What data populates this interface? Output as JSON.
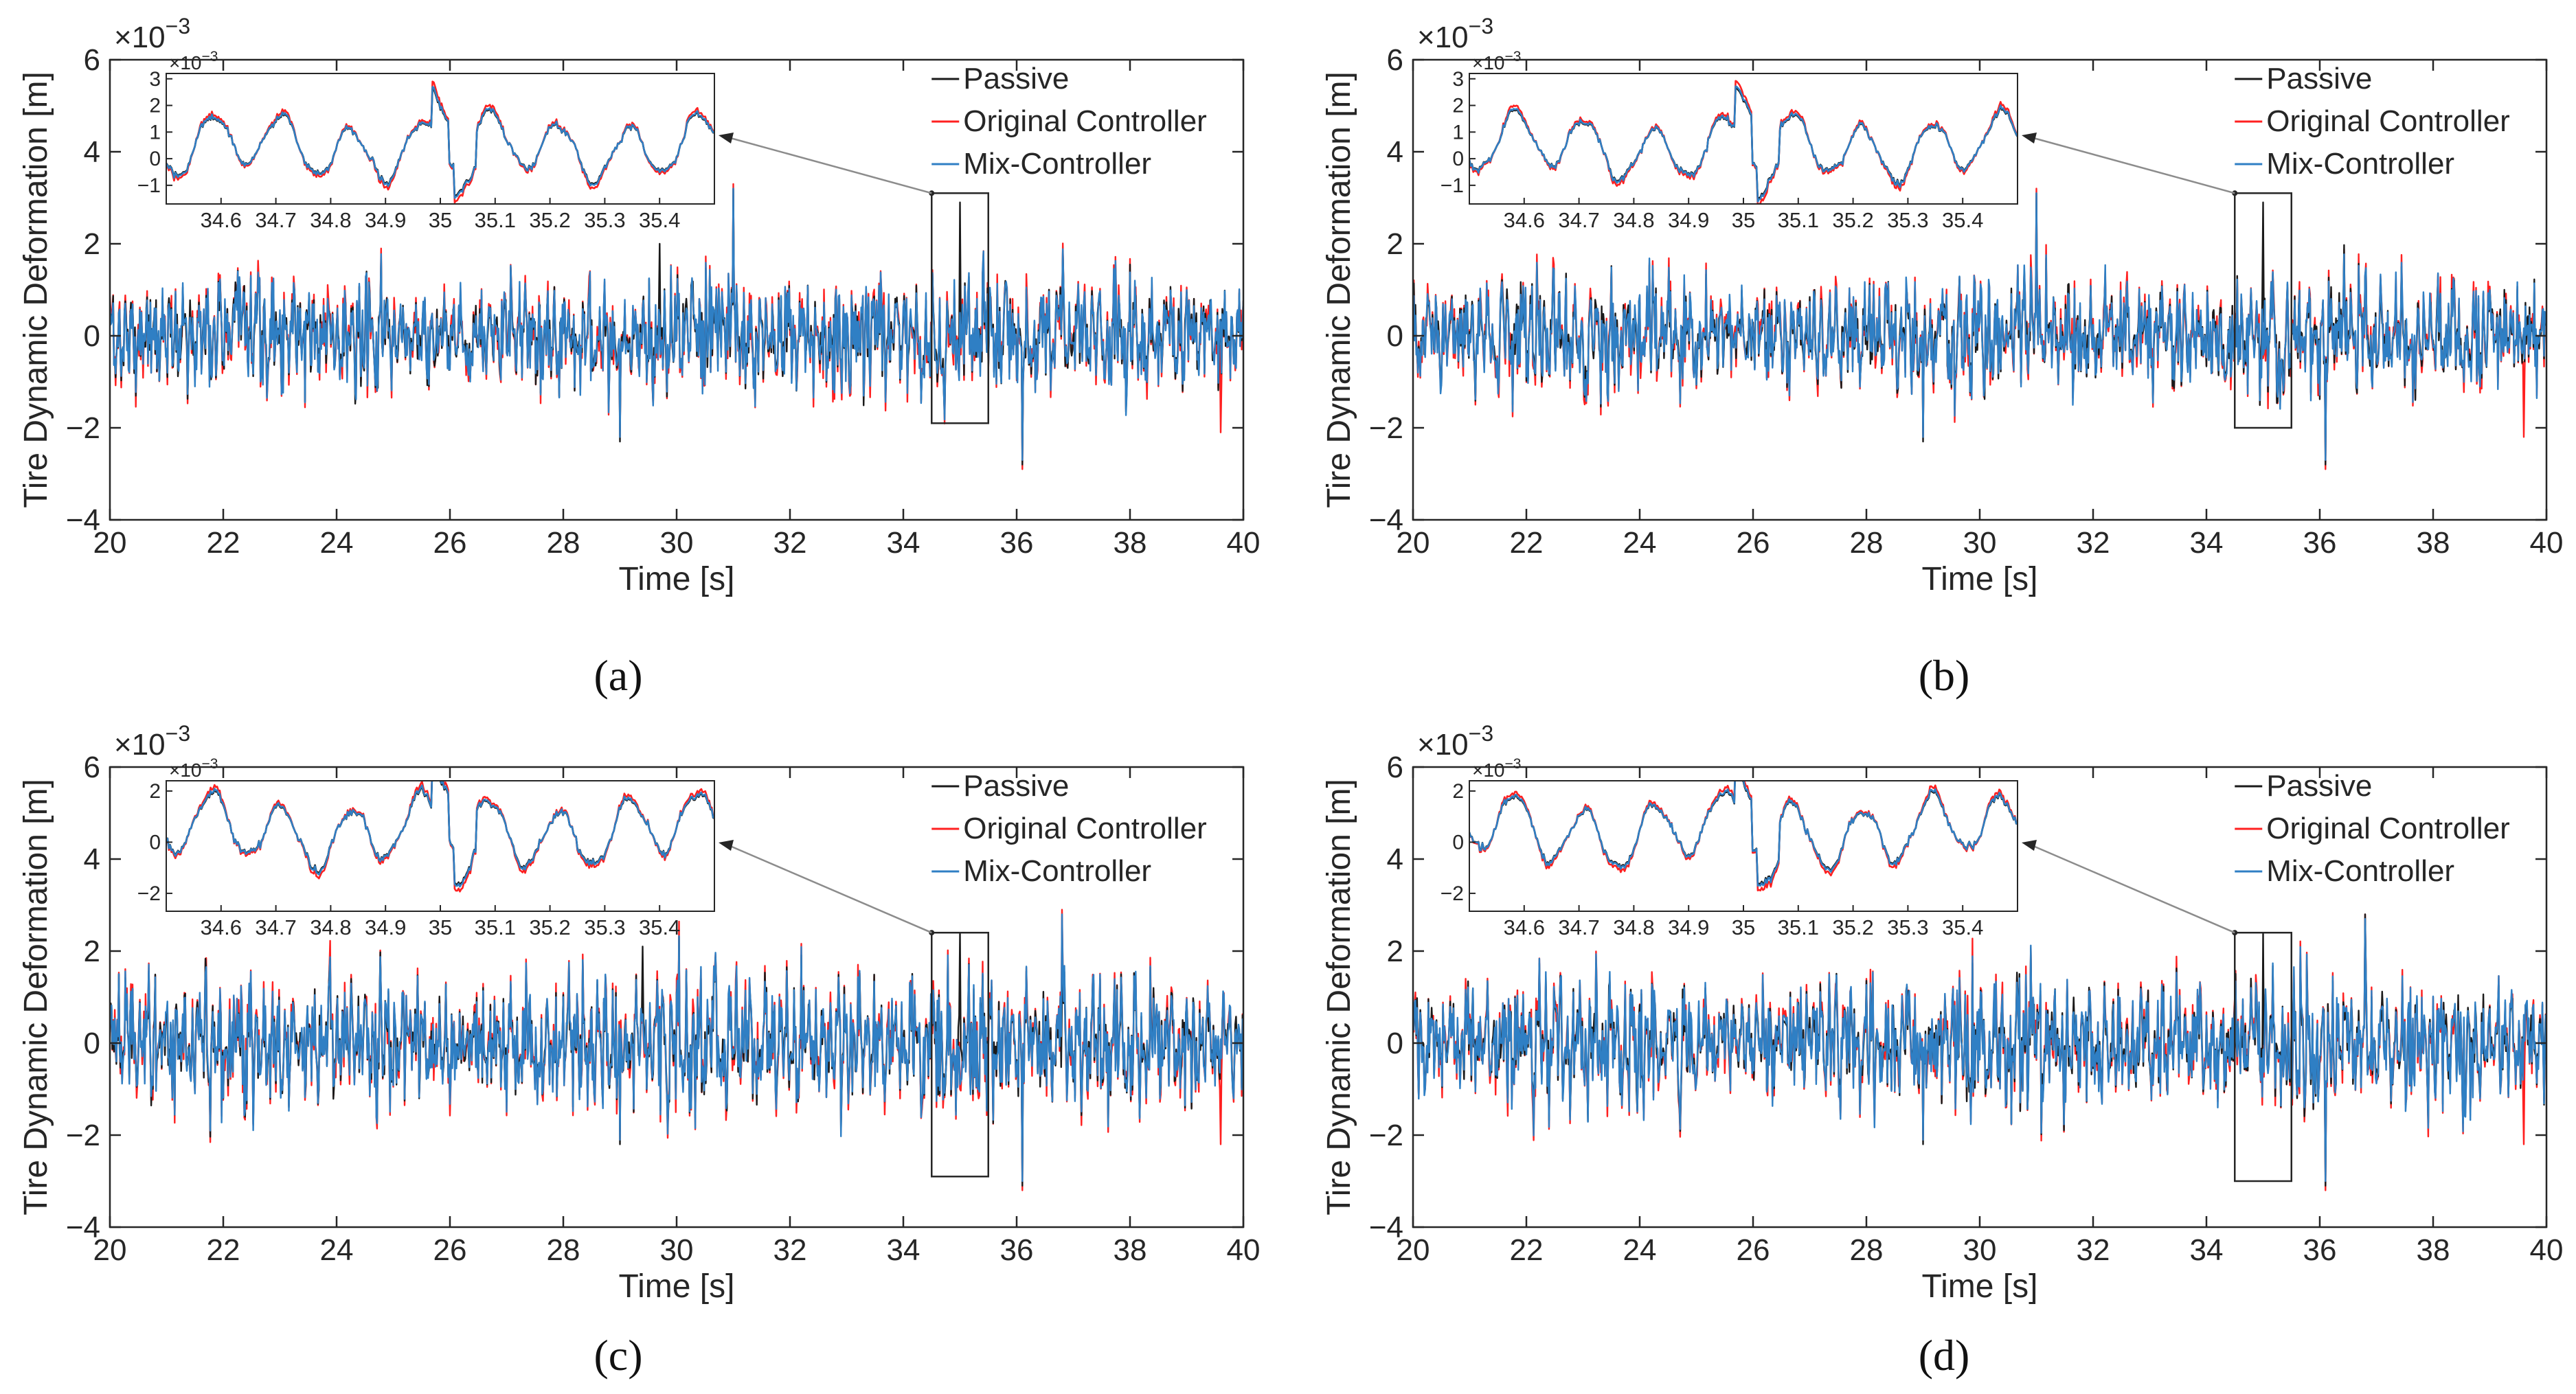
{
  "colors": {
    "passive": "#1a1a1a",
    "original": "#ff2020",
    "mix": "#2f7fc4",
    "axis": "#262626",
    "connector": "#8c8c8c"
  },
  "chart_data": [
    {
      "panel_label": "(a)",
      "type": "line",
      "xlabel": "Time [s]",
      "ylabel": "Tire Dynamic Deformation [m]",
      "y_exponent": "×10",
      "y_exponent_power": "−3",
      "xlim": [
        20,
        40
      ],
      "ylim": [
        -4,
        6
      ],
      "x_ticks": [
        "20",
        "22",
        "24",
        "26",
        "28",
        "30",
        "32",
        "34",
        "36",
        "38",
        "40"
      ],
      "y_ticks": [
        "−4",
        "−2",
        "0",
        "2",
        "4",
        "6"
      ],
      "legend": [
        "Passive",
        "Original Controller",
        "Mix-Controller"
      ],
      "legend_position": "top-right",
      "series": [
        {
          "name": "Passive",
          "std": 0.62,
          "extremes": [
            [
              29.0,
              -2.3
            ],
            [
              29.7,
              2.0
            ],
            [
              31.0,
              3.2
            ],
            [
              35.0,
              2.9
            ],
            [
              36.1,
              -2.8
            ]
          ]
        },
        {
          "name": "Original Controller",
          "std": 0.68,
          "extremes": [
            [
              29.0,
              -2.2
            ],
            [
              31.0,
              3.3
            ],
            [
              36.1,
              -2.9
            ],
            [
              39.6,
              -2.1
            ]
          ]
        },
        {
          "name": "Mix-Controller",
          "std": 0.64,
          "extremes": [
            [
              29.0,
              -2.2
            ],
            [
              31.0,
              3.2
            ],
            [
              36.1,
              -2.7
            ]
          ]
        }
      ],
      "zoom_box": {
        "x": [
          34.5,
          35.5
        ],
        "y": [
          -1.9,
          3.1
        ]
      },
      "inset": {
        "xlim": [
          34.5,
          35.5
        ],
        "ylim": [
          -1.7,
          3.2
        ],
        "x_ticks": [
          "34.6",
          "34.7",
          "34.8",
          "34.9",
          "35",
          "35.1",
          "35.2",
          "35.3",
          "35.4"
        ],
        "y_ticks": [
          "−1",
          "0",
          "1",
          "2",
          "3"
        ],
        "exponent": "×10",
        "exponent_power": "−3"
      }
    },
    {
      "panel_label": "(b)",
      "type": "line",
      "xlabel": "Time [s]",
      "ylabel": "Tire Dynamic Deformation [m]",
      "y_exponent": "×10",
      "y_exponent_power": "−3",
      "xlim": [
        20,
        40
      ],
      "ylim": [
        -4,
        6
      ],
      "x_ticks": [
        "20",
        "22",
        "24",
        "26",
        "28",
        "30",
        "32",
        "34",
        "36",
        "38",
        "40"
      ],
      "y_ticks": [
        "−4",
        "−2",
        "0",
        "2",
        "4",
        "6"
      ],
      "legend": [
        "Passive",
        "Original Controller",
        "Mix-Controller"
      ],
      "legend_position": "top-right",
      "series": [
        {
          "name": "Passive",
          "std": 0.62,
          "extremes": [
            [
              29.0,
              -2.3
            ],
            [
              31.0,
              3.1
            ],
            [
              35.0,
              2.9
            ],
            [
              36.1,
              -2.8
            ]
          ]
        },
        {
          "name": "Original Controller",
          "std": 0.68,
          "extremes": [
            [
              29.0,
              -2.2
            ],
            [
              31.0,
              3.2
            ],
            [
              36.1,
              -2.9
            ],
            [
              39.6,
              -2.2
            ]
          ]
        },
        {
          "name": "Mix-Controller",
          "std": 0.64,
          "extremes": [
            [
              29.0,
              -2.2
            ],
            [
              31.0,
              3.1
            ],
            [
              36.1,
              -2.7
            ]
          ]
        }
      ],
      "zoom_box": {
        "x": [
          34.5,
          35.5
        ],
        "y": [
          -2.0,
          3.1
        ]
      },
      "inset": {
        "xlim": [
          34.5,
          35.5
        ],
        "ylim": [
          -1.7,
          3.2
        ],
        "x_ticks": [
          "34.6",
          "34.7",
          "34.8",
          "34.9",
          "35",
          "35.1",
          "35.2",
          "35.3",
          "35.4"
        ],
        "y_ticks": [
          "−1",
          "0",
          "1",
          "2",
          "3"
        ],
        "exponent": "×10",
        "exponent_power": "−3"
      }
    },
    {
      "panel_label": "(c)",
      "type": "line",
      "xlabel": "Time [s]",
      "ylabel": "Tire Dynamic Deformation [m]",
      "y_exponent": "×10",
      "y_exponent_power": "−3",
      "xlim": [
        20,
        40
      ],
      "ylim": [
        -4,
        6
      ],
      "x_ticks": [
        "20",
        "22",
        "24",
        "26",
        "28",
        "30",
        "32",
        "34",
        "36",
        "38",
        "40"
      ],
      "y_ticks": [
        "−4",
        "−2",
        "0",
        "2",
        "4",
        "6"
      ],
      "legend": [
        "Passive",
        "Original Controller",
        "Mix-Controller"
      ],
      "legend_position": "top-right",
      "series": [
        {
          "name": "Passive",
          "std": 0.7,
          "extremes": [
            [
              29.0,
              -2.2
            ],
            [
              29.4,
              2.1
            ],
            [
              35.0,
              2.4
            ],
            [
              36.1,
              -3.1
            ]
          ]
        },
        {
          "name": "Original Controller",
          "std": 0.76,
          "extremes": [
            [
              29.0,
              -2.1
            ],
            [
              36.1,
              -3.2
            ],
            [
              36.8,
              2.9
            ],
            [
              39.6,
              -2.2
            ]
          ]
        },
        {
          "name": "Mix-Controller",
          "std": 0.72,
          "extremes": [
            [
              29.0,
              -2.1
            ],
            [
              36.1,
              -3.0
            ],
            [
              36.8,
              2.8
            ]
          ]
        }
      ],
      "zoom_box": {
        "x": [
          34.5,
          35.5
        ],
        "y": [
          -2.9,
          2.4
        ]
      },
      "inset": {
        "xlim": [
          34.5,
          35.5
        ],
        "ylim": [
          -2.7,
          2.4
        ],
        "x_ticks": [
          "34.6",
          "34.7",
          "34.8",
          "34.9",
          "35",
          "35.1",
          "35.2",
          "35.3",
          "35.4"
        ],
        "y_ticks": [
          "−2",
          "0",
          "2"
        ],
        "exponent": "×10",
        "exponent_power": "−3"
      }
    },
    {
      "panel_label": "(d)",
      "type": "line",
      "xlabel": "Time [s]",
      "ylabel": "Tire Dynamic Deformation [m]",
      "y_exponent": "×10",
      "y_exponent_power": "−3",
      "xlim": [
        20,
        40
      ],
      "ylim": [
        -4,
        6
      ],
      "x_ticks": [
        "20",
        "22",
        "24",
        "26",
        "28",
        "30",
        "32",
        "34",
        "36",
        "38",
        "40"
      ],
      "y_ticks": [
        "−4",
        "−2",
        "0",
        "2",
        "4",
        "6"
      ],
      "legend": [
        "Passive",
        "Original Controller",
        "Mix-Controller"
      ],
      "legend_position": "top-right",
      "series": [
        {
          "name": "Passive",
          "std": 0.7,
          "extremes": [
            [
              29.0,
              -2.2
            ],
            [
              35.0,
              2.4
            ],
            [
              36.1,
              -3.1
            ],
            [
              36.8,
              2.8
            ]
          ]
        },
        {
          "name": "Original Controller",
          "std": 0.76,
          "extremes": [
            [
              29.0,
              -2.1
            ],
            [
              36.1,
              -3.2
            ],
            [
              36.8,
              2.8
            ],
            [
              39.6,
              -2.2
            ]
          ]
        },
        {
          "name": "Mix-Controller",
          "std": 0.72,
          "extremes": [
            [
              29.0,
              -2.1
            ],
            [
              36.1,
              -3.0
            ],
            [
              36.8,
              2.7
            ]
          ]
        }
      ],
      "zoom_box": {
        "x": [
          34.5,
          35.5
        ],
        "y": [
          -3.0,
          2.4
        ]
      },
      "inset": {
        "xlim": [
          34.5,
          35.5
        ],
        "ylim": [
          -2.7,
          2.4
        ],
        "x_ticks": [
          "34.6",
          "34.7",
          "34.8",
          "34.9",
          "35",
          "35.1",
          "35.2",
          "35.3",
          "35.4"
        ],
        "y_ticks": [
          "−2",
          "0",
          "2"
        ],
        "exponent": "×10",
        "exponent_power": "−3"
      }
    }
  ]
}
